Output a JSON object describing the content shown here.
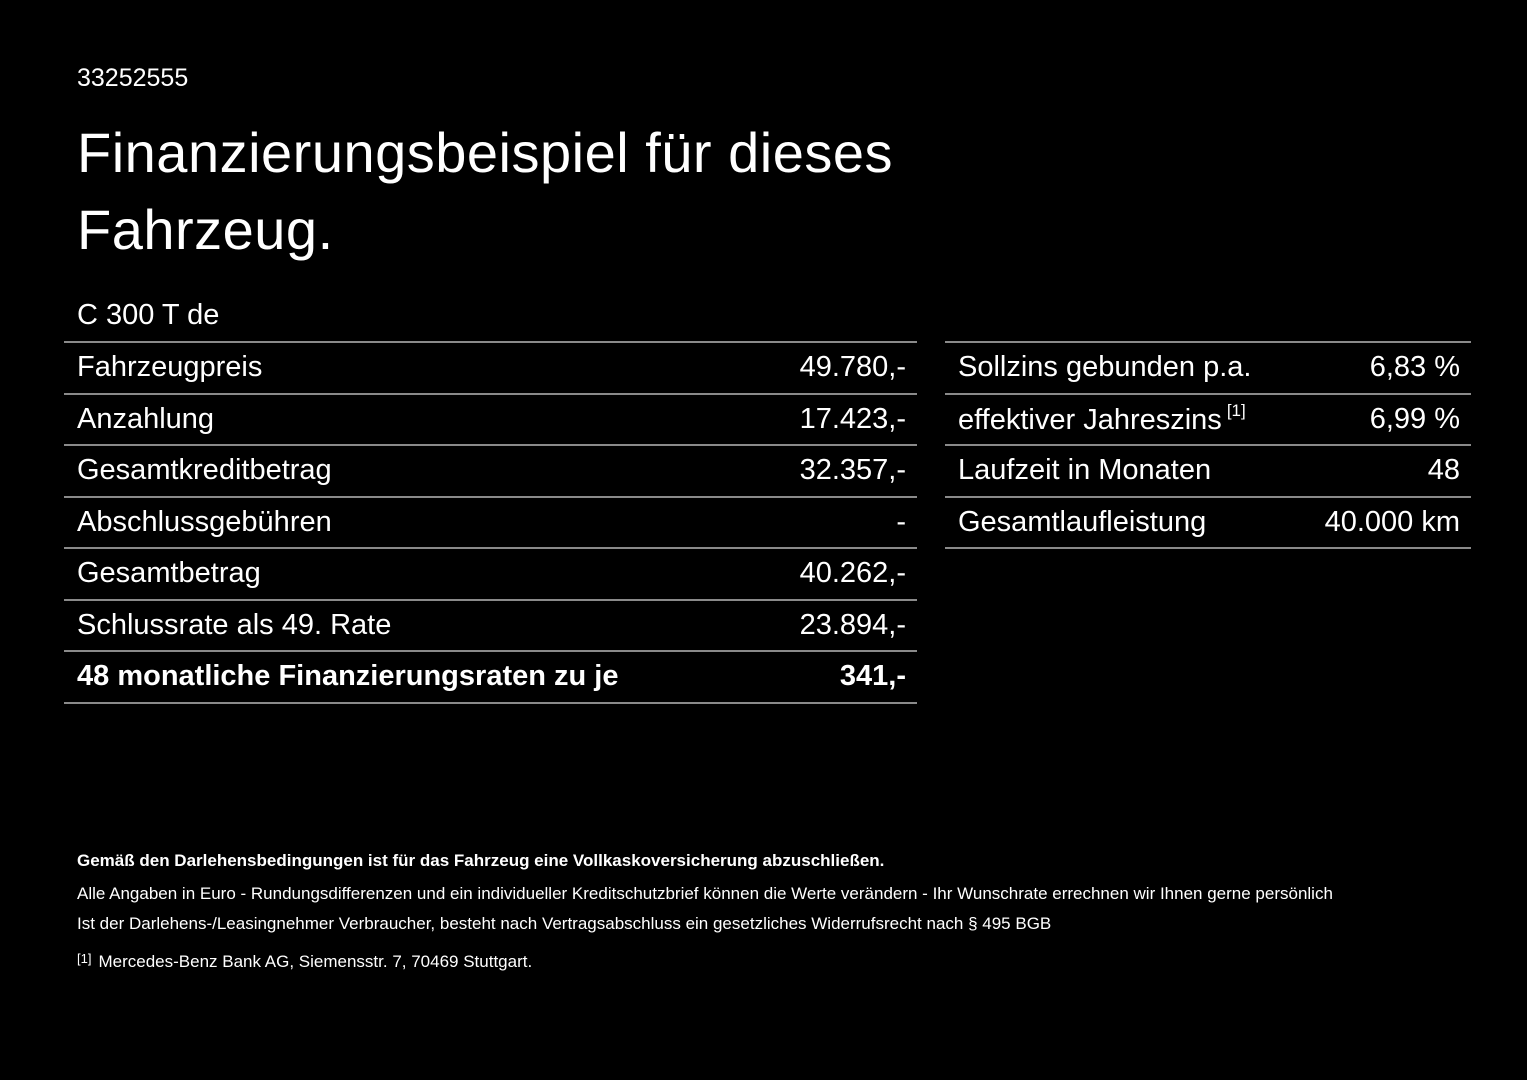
{
  "header": {
    "id": "33252555",
    "title_line1": "Finanzierungsbeispiel für dieses",
    "title_line2": "Fahrzeug.",
    "model": "C 300 T de"
  },
  "left_table": {
    "rows": [
      {
        "label": "Fahrzeugpreis",
        "value": "49.780,-"
      },
      {
        "label": "Anzahlung",
        "value": "17.423,-"
      },
      {
        "label": "Gesamtkreditbetrag",
        "value": "32.357,-"
      },
      {
        "label": "Abschlussgebühren",
        "value": "-"
      },
      {
        "label": "Gesamtbetrag",
        "value": "40.262,-"
      },
      {
        "label": "Schlussrate als 49. Rate",
        "value": "23.894,-"
      },
      {
        "label": "48 monatliche Finanzierungsraten zu je",
        "value": "341,-"
      }
    ]
  },
  "right_table": {
    "rows": [
      {
        "label": "Sollzins gebunden p.a.",
        "value": "6,83 %"
      },
      {
        "label": "effektiver Jahreszins",
        "label_sup": "[1]",
        "value": "6,99 %"
      },
      {
        "label": "Laufzeit in Monaten",
        "value": "48"
      },
      {
        "label": "Gesamtlaufleistung",
        "value": "40.000 km"
      }
    ]
  },
  "footnotes": {
    "insurance_note": "Gemäß den Darlehensbedingungen ist für das Fahrzeug eine Vollkaskoversicherung abzuschließen.",
    "euro_note": "Alle Angaben in Euro - Rundungsdifferenzen und ein individueller Kreditschutzbrief können die Werte verändern - Ihr Wunschrate errechnen wir Ihnen gerne persönlich",
    "withdrawal_note": "Ist der Darlehens-/Leasingnehmer Verbraucher, besteht nach Vertragsabschluss ein gesetzliches Widerrufsrecht nach § 495 BGB",
    "ref_marker": "[1]",
    "ref_text": "Mercedes-Benz Bank AG, Siemensstr. 7, 70469 Stuttgart."
  },
  "colors": {
    "background": "#000000",
    "text": "#ffffff",
    "divider": "#8a8a8a"
  }
}
